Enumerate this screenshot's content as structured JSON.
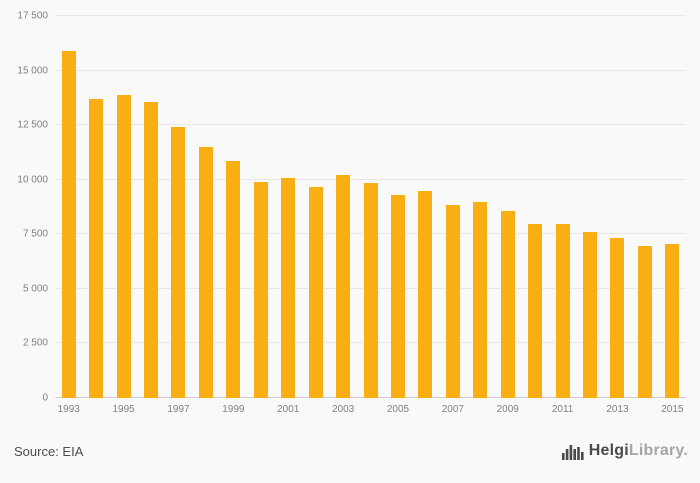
{
  "chart_data": {
    "type": "bar",
    "title": "",
    "categories": [
      "1993",
      "1994",
      "1995",
      "1996",
      "1997",
      "1998",
      "1999",
      "2000",
      "2001",
      "2002",
      "2003",
      "2004",
      "2005",
      "2006",
      "2007",
      "2008",
      "2009",
      "2010",
      "2011",
      "2012",
      "2013",
      "2014",
      "2015"
    ],
    "values": [
      15900,
      13700,
      13900,
      13550,
      12400,
      11500,
      10850,
      9900,
      10100,
      9650,
      10200,
      9850,
      9300,
      9500,
      8850,
      9000,
      8550,
      7950,
      7950,
      7600,
      7350,
      6950,
      7050
    ],
    "ylim": [
      0,
      17500
    ],
    "yticks": [
      {
        "value": 0,
        "label": "0"
      },
      {
        "value": 2500,
        "label": "2 500"
      },
      {
        "value": 5000,
        "label": "5 000"
      },
      {
        "value": 7500,
        "label": "7 500"
      },
      {
        "value": 10000,
        "label": "10 000"
      },
      {
        "value": 12500,
        "label": "12 500"
      },
      {
        "value": 15000,
        "label": "15 000"
      },
      {
        "value": 17500,
        "label": "17 500"
      }
    ],
    "x_tick_labels": [
      "1993",
      "1995",
      "1997",
      "1999",
      "2001",
      "2003",
      "2005",
      "2007",
      "2009",
      "2011",
      "2013",
      "2015"
    ],
    "grid": true,
    "legend": false,
    "xlabel": "",
    "ylabel": ""
  },
  "colors": {
    "bar": "#F9AE14",
    "background": "#f9f9f9",
    "grid": "#e8e8e8",
    "axis_text": "#808080"
  },
  "footer": {
    "source": "Source: EIA",
    "logo_bold": "Helgi",
    "logo_light": "Library."
  }
}
